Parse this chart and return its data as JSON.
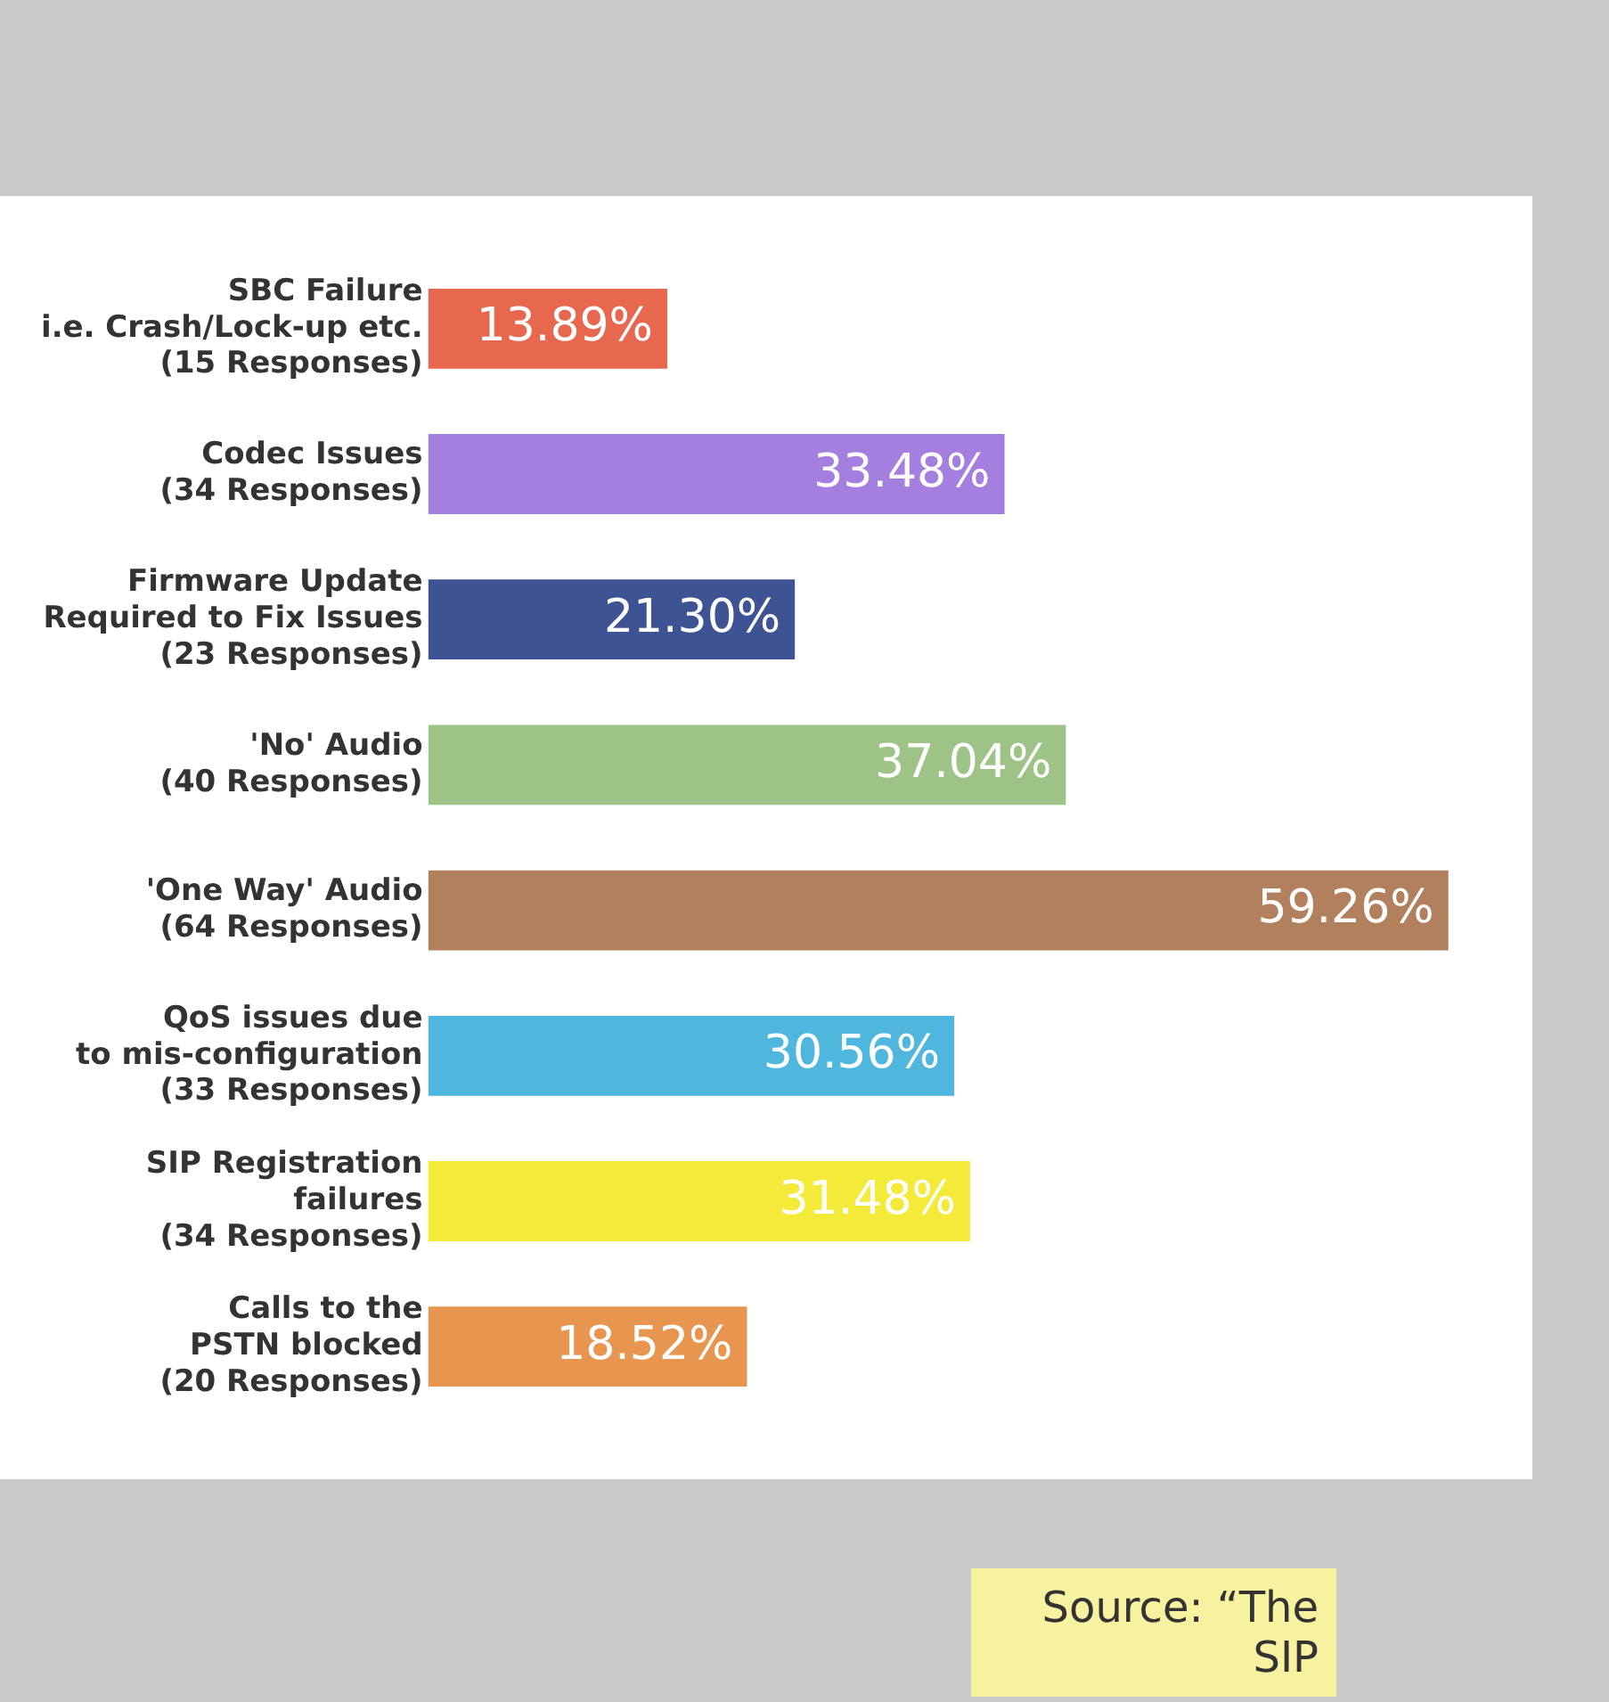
{
  "chart_data": {
    "type": "bar",
    "orientation": "horizontal",
    "categories": [
      "SBC Failure\ni.e. Crash/Lock-up etc.\n(15 Responses)",
      "Codec Issues\n(34 Responses)",
      "Firmware Update\nRequired to Fix Issues\n(23 Responses)",
      "'No' Audio\n(40 Responses)",
      "'One Way' Audio\n(64 Responses)",
      "QoS issues due\nto mis-configuration\n(33 Responses)",
      "SIP Registration\nfailures\n(34 Responses)",
      "Calls to the\nPSTN blocked\n(20 Responses)"
    ],
    "values": [
      13.89,
      33.48,
      21.3,
      37.04,
      59.26,
      30.56,
      31.48,
      18.52
    ],
    "colors": [
      "#e8674f",
      "#a57fe0",
      "#3d5394",
      "#9dc386",
      "#b2805d",
      "#4fb6dd",
      "#f3ea3a",
      "#e8964f"
    ],
    "value_labels": [
      "13.89%",
      "33.48%",
      "21.30%",
      "37.04%",
      "59.26%",
      "30.56%",
      "31.48%",
      "18.52%"
    ],
    "annotations": [
      "Source: “The SIP"
    ],
    "grid": false,
    "legend": false
  }
}
